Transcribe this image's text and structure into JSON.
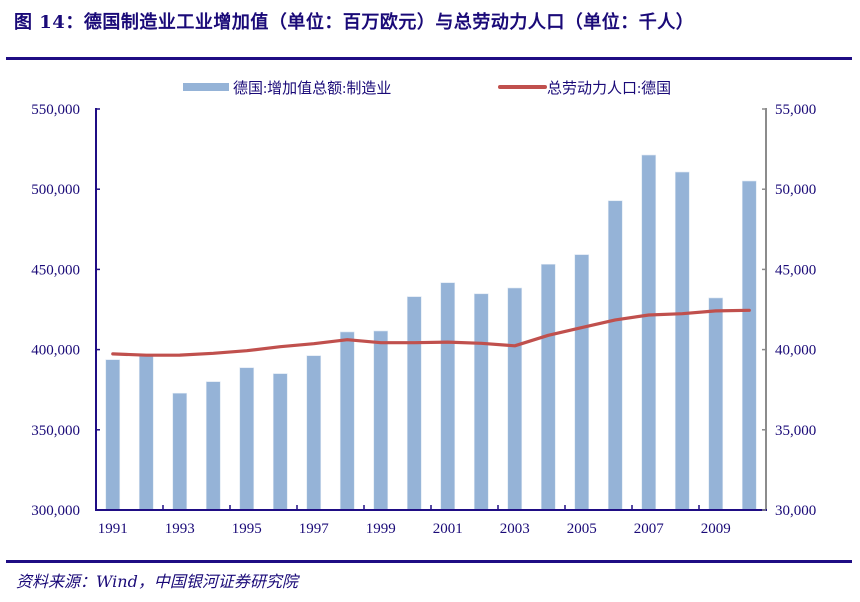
{
  "title": "图 14：德国制造业工业增加值（单位：百万欧元）与总劳动力人口（单位：千人）",
  "source": "资料来源：Wind，中国银河证券研究院",
  "colors": {
    "bar": "#95b3d7",
    "line": "#c0504d",
    "axis": "#1f0d84",
    "right_axis": "#8c8c8c",
    "text": "#1a0a78"
  },
  "chart_data": {
    "type": "bar+line",
    "title": "图 14：德国制造业工业增加值（单位：百万欧元）与总劳动力人口（单位：千人）",
    "categories": [
      1991,
      1992,
      1993,
      1994,
      1995,
      1996,
      1997,
      1998,
      1999,
      2000,
      2001,
      2002,
      2003,
      2004,
      2005,
      2006,
      2007,
      2008,
      2009,
      2010
    ],
    "x_tick_labels": [
      "1991",
      "1993",
      "1995",
      "1997",
      "1999",
      "2001",
      "2003",
      "2005",
      "2007",
      "2009"
    ],
    "legend_position": "top",
    "grid": false,
    "series": [
      {
        "name": "德国:增加值总额:制造业",
        "type": "bar",
        "axis": "left",
        "values": [
          393700,
          396400,
          372800,
          380000,
          388700,
          385000,
          396200,
          411000,
          411600,
          433000,
          441700,
          434800,
          438400,
          453200,
          459200,
          492800,
          521300,
          510700,
          432200,
          505100
        ]
      },
      {
        "name": "总劳动力人口:德国",
        "type": "line",
        "axis": "right",
        "values": [
          39730,
          39650,
          39660,
          39770,
          39930,
          40180,
          40370,
          40620,
          40430,
          40430,
          40470,
          40390,
          40240,
          40890,
          41370,
          41850,
          42160,
          42240,
          42410,
          42450
        ]
      }
    ],
    "y_left": {
      "ylim": [
        300000,
        550000
      ],
      "ticks": [
        "300,000",
        "350,000",
        "400,000",
        "450,000",
        "500,000",
        "550,000"
      ]
    },
    "y_right": {
      "ylim": [
        30000,
        55000
      ],
      "ticks": [
        "30,000",
        "35,000",
        "40,000",
        "45,000",
        "50,000",
        "55,000"
      ]
    }
  }
}
